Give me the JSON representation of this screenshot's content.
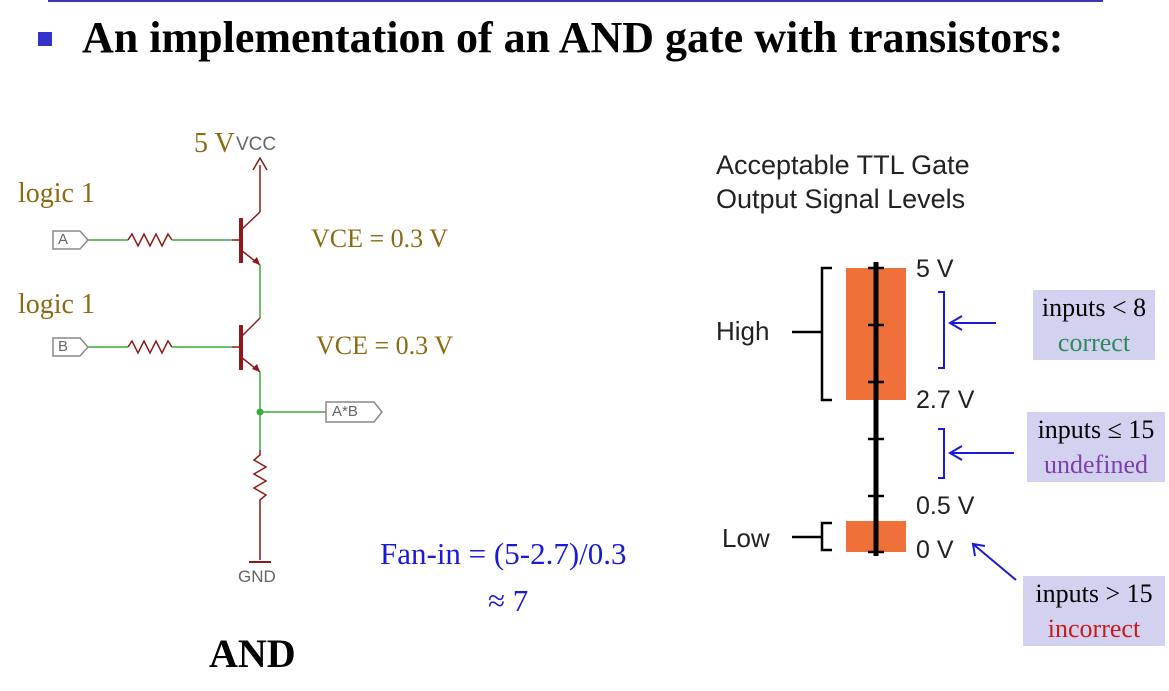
{
  "slide": {
    "heading": "An implementation of an AND gate with transistors:"
  },
  "schematic": {
    "supply_voltage": "5 V",
    "vcc_label": "VCC",
    "input_a_state": "logic 1",
    "input_b_state": "logic 1",
    "input_a_label": "A",
    "input_b_label": "B",
    "vce_top": "VCE = 0.3 V",
    "vce_bottom": "VCE = 0.3 V",
    "output_label": "A*B",
    "gnd_label": "GND",
    "gate_name": "AND"
  },
  "fan_in": {
    "line1": "Fan-in = (5-2.7)/0.3",
    "line2": "≈ 7"
  },
  "ttl_levels": {
    "title_line1": "Acceptable TTL Gate",
    "title_line2": "Output Signal Levels",
    "high_label": "High",
    "low_label": "Low",
    "levels": [
      "5 V",
      "2.7 V",
      "0.5 V",
      "0 V"
    ],
    "band_color": "#f0703a"
  },
  "annotations": [
    {
      "line1": "inputs < 8",
      "line2": "correct",
      "line2_color": "#2e8a5e"
    },
    {
      "line1": "inputs ≤ 15",
      "line2": "undefined",
      "line2_color": "#7f3fae"
    },
    {
      "line1": "inputs > 15",
      "line2": "incorrect",
      "line2_color": "#c81a1a"
    }
  ],
  "colors": {
    "wire": "#8c1a1a",
    "connection": "#3aaa3a",
    "arrow": "#1a1ad6",
    "label_brown": "#8b6a14",
    "box_fill": "#d2d2f0"
  }
}
